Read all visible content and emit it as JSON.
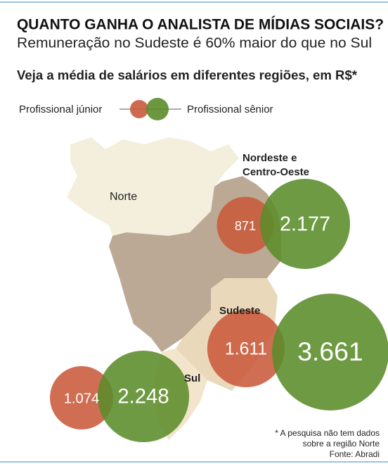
{
  "chart_data": {
    "type": "bubble",
    "title": "QUANTO GANHA O ANALISTA DE MÍDIAS SOCIAIS?",
    "subtitle": "Remuneração no Sudeste é 60% maior do que no Sul",
    "heading": "Veja a média de salários em diferentes regiões, em R$*",
    "categories": [
      "Nordeste e Centro-Oeste",
      "Sudeste",
      "Sul"
    ],
    "map_labels": [
      "Norte"
    ],
    "series": [
      {
        "name": "Profissional júnior",
        "color": "#c95a3b",
        "values": [
          871,
          1611,
          1074
        ],
        "value_labels": [
          "871",
          "1.611",
          "1.074"
        ]
      },
      {
        "name": "Profissional sênior",
        "color": "#5b8c2a",
        "values": [
          2177,
          3661,
          2248
        ],
        "value_labels": [
          "2.177",
          "3.661",
          "2.248"
        ]
      }
    ],
    "footnote": "* A pesquisa não tem dados sobre a região Norte",
    "source": "Fonte: Abradi"
  }
}
